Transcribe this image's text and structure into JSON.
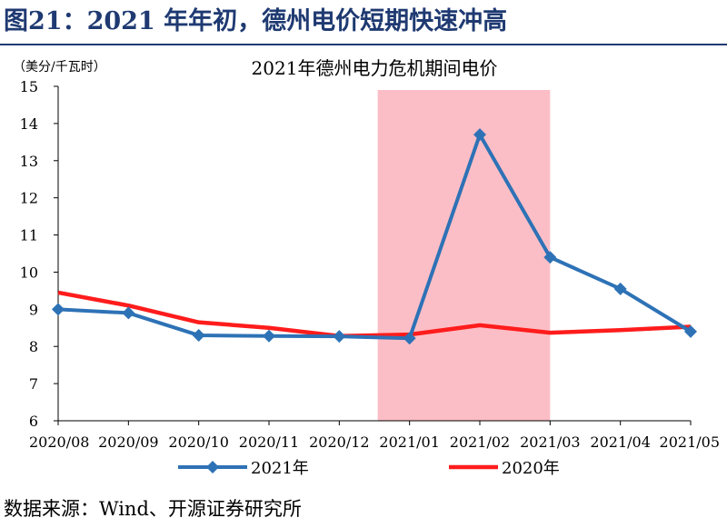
{
  "figure": {
    "title": "图21：2021 年年初，德州电价短期快速冲高",
    "source": "数据来源：Wind、开源证券研究所"
  },
  "chart_data": {
    "type": "line",
    "title": "2021年德州电力危机期间电价",
    "unit_label": "（美分/千瓦时）",
    "categories": [
      "2020/08",
      "2020/09",
      "2020/10",
      "2020/11",
      "2020/12",
      "2021/01",
      "2021/02",
      "2021/03",
      "2021/04",
      "2021/05"
    ],
    "ylim": [
      6,
      15
    ],
    "yticks": [
      "6",
      "7",
      "8",
      "9",
      "10",
      "11",
      "12",
      "13",
      "14",
      "15"
    ],
    "highlight": {
      "from": "2021/01",
      "to": "2021/03",
      "color": "#fcbec6"
    },
    "legend_position": "bottom",
    "series": [
      {
        "name": "2021年",
        "color": "#2e72b6",
        "marker": "diamond",
        "values": [
          9.0,
          8.9,
          8.3,
          8.28,
          8.27,
          8.22,
          13.7,
          10.4,
          9.55,
          8.4
        ]
      },
      {
        "name": "2020年",
        "color": "#ff1c1c",
        "marker": "none",
        "values": [
          9.45,
          9.1,
          8.65,
          8.5,
          8.28,
          8.32,
          8.57,
          8.37,
          8.44,
          8.53
        ]
      }
    ]
  }
}
